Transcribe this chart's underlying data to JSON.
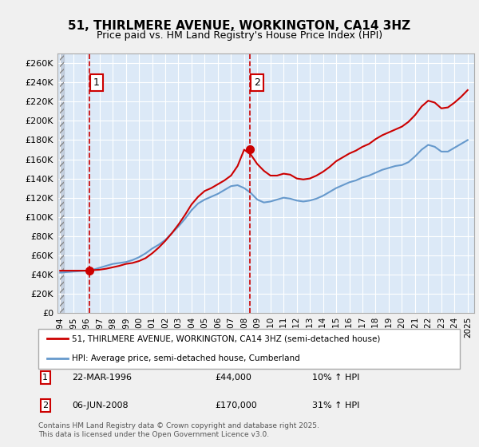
{
  "title": "51, THIRLMERE AVENUE, WORKINGTON, CA14 3HZ",
  "subtitle": "Price paid vs. HM Land Registry's House Price Index (HPI)",
  "background_color": "#dce9f7",
  "plot_bg_color": "#dce9f7",
  "hatch_region_color": "#c0c0c0",
  "grid_color": "#ffffff",
  "ylim": [
    0,
    270000
  ],
  "yticks": [
    0,
    20000,
    40000,
    60000,
    80000,
    100000,
    120000,
    140000,
    160000,
    180000,
    200000,
    220000,
    240000,
    260000
  ],
  "ytick_labels": [
    "£0",
    "£20K",
    "£40K",
    "£60K",
    "£80K",
    "£100K",
    "£120K",
    "£140K",
    "£160K",
    "£180K",
    "£200K",
    "£220K",
    "£240K",
    "£260K"
  ],
  "xlim_start": 1994,
  "xlim_end": 2025.5,
  "xticks": [
    1994,
    1995,
    1996,
    1997,
    1998,
    1999,
    2000,
    2001,
    2002,
    2003,
    2004,
    2005,
    2006,
    2007,
    2008,
    2009,
    2010,
    2011,
    2012,
    2013,
    2014,
    2015,
    2016,
    2017,
    2018,
    2019,
    2020,
    2021,
    2022,
    2023,
    2024,
    2025
  ],
  "sale1_x": 1996.23,
  "sale1_y": 44000,
  "sale1_label": "1",
  "sale2_x": 2008.44,
  "sale2_y": 170000,
  "sale2_label": "2",
  "line1_color": "#cc0000",
  "line2_color": "#6699cc",
  "dashed_line_color": "#cc0000",
  "legend_line1": "51, THIRLMERE AVENUE, WORKINGTON, CA14 3HZ (semi-detached house)",
  "legend_line2": "HPI: Average price, semi-detached house, Cumberland",
  "annotation1": "1     22-MAR-1996                £44,000           10% ↑ HPI",
  "annotation2": "2     06-JUN-2008              £170,000           31% ↑ HPI",
  "footer": "Contains HM Land Registry data © Crown copyright and database right 2025.\nThis data is licensed under the Open Government Licence v3.0.",
  "hpi_years": [
    1994,
    1994.5,
    1995,
    1995.5,
    1996,
    1996.5,
    1997,
    1997.5,
    1998,
    1998.5,
    1999,
    1999.5,
    2000,
    2000.5,
    2001,
    2001.5,
    2002,
    2002.5,
    2003,
    2003.5,
    2004,
    2004.5,
    2005,
    2005.5,
    2006,
    2006.5,
    2007,
    2007.5,
    2008,
    2008.5,
    2009,
    2009.5,
    2010,
    2010.5,
    2011,
    2011.5,
    2012,
    2012.5,
    2013,
    2013.5,
    2014,
    2014.5,
    2015,
    2015.5,
    2016,
    2016.5,
    2017,
    2017.5,
    2018,
    2018.5,
    2019,
    2019.5,
    2020,
    2020.5,
    2021,
    2021.5,
    2022,
    2022.5,
    2023,
    2023.5,
    2024,
    2024.5,
    2025
  ],
  "hpi_values": [
    42000,
    42500,
    43000,
    43500,
    44000,
    45000,
    47000,
    49000,
    51000,
    52000,
    53000,
    55000,
    58000,
    62000,
    67000,
    71000,
    76000,
    83000,
    90000,
    98000,
    107000,
    114000,
    118000,
    121000,
    124000,
    128000,
    132000,
    133000,
    130000,
    125000,
    118000,
    115000,
    116000,
    118000,
    120000,
    119000,
    117000,
    116000,
    117000,
    119000,
    122000,
    126000,
    130000,
    133000,
    136000,
    138000,
    141000,
    143000,
    146000,
    149000,
    151000,
    153000,
    154000,
    157000,
    163000,
    170000,
    175000,
    173000,
    168000,
    168000,
    172000,
    176000,
    180000
  ],
  "price_years": [
    1994,
    1994.4,
    1995,
    1995.5,
    1996,
    1996.5,
    1997,
    1997.5,
    1998,
    1998.5,
    1999,
    1999.5,
    2000,
    2000.5,
    2001,
    2001.5,
    2002,
    2002.5,
    2003,
    2003.5,
    2004,
    2004.5,
    2005,
    2005.5,
    2006,
    2006.5,
    2007,
    2007.5,
    2008,
    2008.5,
    2009,
    2009.5,
    2010,
    2010.5,
    2011,
    2011.5,
    2012,
    2012.5,
    2013,
    2013.5,
    2014,
    2014.5,
    2015,
    2015.5,
    2016,
    2016.5,
    2017,
    2017.5,
    2018,
    2018.5,
    2019,
    2019.5,
    2020,
    2020.5,
    2021,
    2021.5,
    2022,
    2022.5,
    2023,
    2023.5,
    2024,
    2024.5,
    2025
  ],
  "price_values": [
    44000,
    44000,
    44000,
    44000,
    44000,
    44500,
    45000,
    46000,
    47500,
    49000,
    51000,
    52000,
    54000,
    57000,
    62000,
    68000,
    75000,
    83000,
    92000,
    102000,
    113000,
    121000,
    127000,
    130000,
    134000,
    138000,
    143000,
    153000,
    170000,
    165000,
    155000,
    148000,
    143000,
    143000,
    145000,
    144000,
    140000,
    139000,
    140000,
    143000,
    147000,
    152000,
    158000,
    162000,
    166000,
    169000,
    173000,
    176000,
    181000,
    185000,
    188000,
    191000,
    194000,
    199000,
    206000,
    215000,
    221000,
    219000,
    213000,
    214000,
    219000,
    225000,
    232000
  ]
}
